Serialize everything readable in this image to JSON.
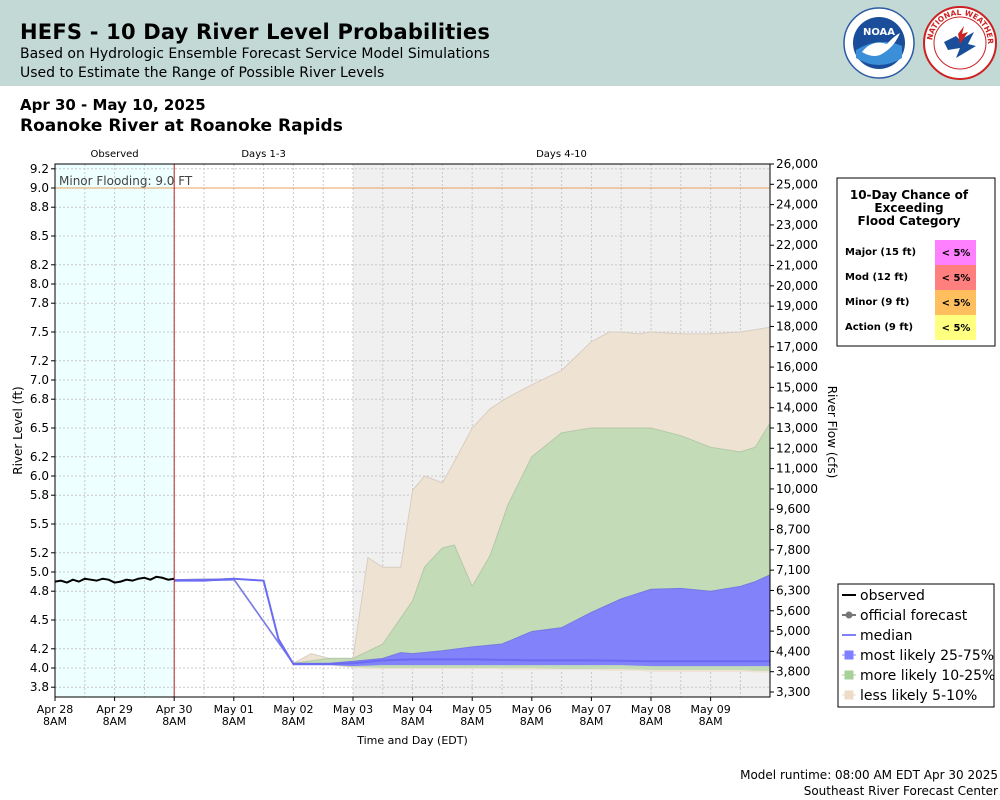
{
  "header": {
    "title": "HEFS - 10 Day River Level Probabilities",
    "subtitle1": "Based on Hydrologic Ensemble Forecast Service Model Simulations",
    "subtitle2": "Used to Estimate the Range of Possible River Levels",
    "noaa_logo_text": "NOAA",
    "nws_logo_text": "NATIONAL WEATHER SERVICE"
  },
  "date_range": "Apr 30 - May 10, 2025",
  "location": "Roanoke River at Roanoke Rapids",
  "footer": {
    "runtime": "Model runtime: 08:00 AM EDT Apr 30 2025",
    "center": "Southeast River Forecast Center"
  },
  "chance_table": {
    "title_lines": [
      "10-Day Chance of",
      "Exceeding",
      "Flood Category"
    ],
    "rows": [
      {
        "label": "Major (15 ft)",
        "value": "< 5%",
        "color": "#ff80ff"
      },
      {
        "label": "Mod (12 ft)",
        "value": "< 5%",
        "color": "#ff7f7f"
      },
      {
        "label": "Minor (9 ft)",
        "value": "< 5%",
        "color": "#ffbf5f"
      },
      {
        "label": "Action (9 ft)",
        "value": "< 5%",
        "color": "#ffff80"
      }
    ]
  },
  "chart_data": {
    "type": "area",
    "xlabel": "Time and Day (EDT)",
    "ylabel": "River Level (ft)",
    "y2label": "River Flow (cfs)",
    "ylim": [
      3.75,
      9.2
    ],
    "y_ticks": [
      "3.8",
      "4.0",
      "4.2",
      "4.5",
      "4.8",
      "5.0",
      "5.2",
      "5.5",
      "5.8",
      "6.0",
      "6.2",
      "6.5",
      "6.8",
      "7.0",
      "7.2",
      "7.5",
      "7.8",
      "8.0",
      "8.2",
      "8.5",
      "8.8",
      "9.0",
      "9.2"
    ],
    "y2_ticks": [
      "3,300",
      "3,800",
      "4,400",
      "5,000",
      "5,600",
      "6,300",
      "7,100",
      "7,800",
      "8,700",
      "9,600",
      "10,000",
      "11,000",
      "12,000",
      "13,000",
      "14,000",
      "15,000",
      "16,000",
      "17,000",
      "18,000",
      "19,000",
      "20,000",
      "21,000",
      "22,000",
      "23,000",
      "24,000",
      "25,000",
      "26,000"
    ],
    "x_ticks": [
      {
        "day": 0,
        "label": "Apr 28",
        "sub": "8AM"
      },
      {
        "day": 1,
        "label": "Apr 29",
        "sub": "8AM"
      },
      {
        "day": 2,
        "label": "Apr 30",
        "sub": "8AM"
      },
      {
        "day": 3,
        "label": "May 01",
        "sub": "8AM"
      },
      {
        "day": 4,
        "label": "May 02",
        "sub": "8AM"
      },
      {
        "day": 5,
        "label": "May 03",
        "sub": "8AM"
      },
      {
        "day": 6,
        "label": "May 04",
        "sub": "8AM"
      },
      {
        "day": 7,
        "label": "May 05",
        "sub": "8AM"
      },
      {
        "day": 8,
        "label": "May 06",
        "sub": "8AM"
      },
      {
        "day": 9,
        "label": "May 07",
        "sub": "8AM"
      },
      {
        "day": 10,
        "label": "May 08",
        "sub": "8AM"
      },
      {
        "day": 11,
        "label": "May 09",
        "sub": "8AM"
      }
    ],
    "regions": [
      {
        "label": "Observed",
        "start": 0,
        "end": 2,
        "color": "#eeffff"
      },
      {
        "label": "Days 1-3",
        "start": 2,
        "end": 5,
        "color": "#ffffff"
      },
      {
        "label": "Days 4-10",
        "start": 5,
        "end": 12.1,
        "color": "#f0f0f0"
      }
    ],
    "flood_line": {
      "label": "Minor Flooding: 9.0 FT",
      "value": 9.0,
      "color": "#e8a060"
    },
    "now_line": {
      "day": 2,
      "color": "#bb2222"
    },
    "legend": {
      "placement": "bottom-right",
      "entries": [
        {
          "label": "observed",
          "color": "#000000",
          "kind": "line"
        },
        {
          "label": "official forecast",
          "color": "#777777",
          "kind": "line-dot"
        },
        {
          "label": "median",
          "color": "#7f7fff",
          "kind": "line"
        },
        {
          "label": "most likely 25-75%",
          "color": "#7f7fff",
          "kind": "box"
        },
        {
          "label": "more likely 10-25%",
          "color": "#a8d09a",
          "kind": "box"
        },
        {
          "label": "less likely 5-10%",
          "color": "#ecdcc8",
          "kind": "box"
        }
      ]
    },
    "series": [
      {
        "name": "less likely 5-10%",
        "color": "#eee2d3",
        "x": [
          2.0,
          3.0,
          4.0,
          4.3,
          4.6,
          5.0,
          5.25,
          5.5,
          5.8,
          6.0,
          6.2,
          6.5,
          6.7,
          7.0,
          7.3,
          7.6,
          8.0,
          8.5,
          9.0,
          9.3,
          9.5,
          9.8,
          10.0,
          10.5,
          11.0,
          11.5,
          12.0,
          12.1
        ],
        "upper": [
          4.92,
          4.93,
          4.05,
          4.15,
          4.1,
          4.1,
          5.15,
          5.05,
          5.05,
          5.85,
          6.0,
          5.93,
          6.15,
          6.5,
          6.7,
          6.82,
          6.95,
          7.1,
          7.4,
          7.5,
          7.5,
          7.48,
          7.5,
          7.48,
          7.48,
          7.5,
          7.55,
          7.55
        ],
        "lower": [
          4.9,
          4.91,
          4.03,
          4.03,
          4.03,
          4.0,
          3.99,
          3.99,
          3.99,
          3.99,
          3.99,
          3.99,
          3.99,
          3.99,
          3.99,
          3.98,
          3.98,
          3.98,
          3.98,
          3.97,
          3.97,
          3.97,
          3.96,
          3.96,
          3.96,
          3.96,
          3.95,
          3.95
        ]
      },
      {
        "name": "more likely 10-25%",
        "color": "#c3dcb7",
        "x": [
          2.0,
          3.0,
          4.0,
          4.6,
          5.0,
          5.5,
          6.0,
          6.2,
          6.5,
          6.7,
          7.0,
          7.3,
          7.6,
          8.0,
          8.5,
          9.0,
          9.5,
          10.0,
          10.5,
          11.0,
          11.5,
          11.75,
          12.0,
          12.1
        ],
        "upper": [
          4.92,
          4.93,
          4.05,
          4.1,
          4.1,
          4.25,
          4.7,
          5.05,
          5.25,
          5.28,
          4.85,
          5.17,
          5.7,
          6.2,
          6.45,
          6.5,
          6.5,
          6.5,
          6.42,
          6.3,
          6.25,
          6.3,
          6.55,
          6.6
        ],
        "lower": [
          4.9,
          4.91,
          4.03,
          4.03,
          4.01,
          4.0,
          4.0,
          4.0,
          4.0,
          4.0,
          4.0,
          4.0,
          4.0,
          4.0,
          3.99,
          3.99,
          3.99,
          3.98,
          3.98,
          3.98,
          3.98,
          3.97,
          3.97,
          3.97
        ]
      },
      {
        "name": "most likely 25-75%",
        "color": "#8282fa",
        "x": [
          2.0,
          3.0,
          4.0,
          4.6,
          5.0,
          5.5,
          5.8,
          6.0,
          6.5,
          7.0,
          7.5,
          8.0,
          8.5,
          9.0,
          9.5,
          10.0,
          10.5,
          11.0,
          11.5,
          11.75,
          12.0,
          12.1
        ],
        "upper": [
          4.92,
          4.93,
          4.05,
          4.05,
          4.07,
          4.1,
          4.16,
          4.15,
          4.18,
          4.22,
          4.25,
          4.38,
          4.42,
          4.58,
          4.72,
          4.82,
          4.83,
          4.8,
          4.85,
          4.9,
          4.97,
          4.98
        ],
        "lower": [
          4.9,
          4.91,
          4.03,
          4.03,
          4.02,
          4.03,
          4.03,
          4.03,
          4.03,
          4.03,
          4.03,
          4.03,
          4.03,
          4.03,
          4.03,
          4.02,
          4.02,
          4.02,
          4.02,
          4.02,
          4.02,
          4.02
        ]
      },
      {
        "name": "median",
        "color": "#6a6af5",
        "x": [
          2.0,
          2.5,
          3.0,
          3.5,
          3.75,
          4.0,
          4.6,
          5.0,
          5.5,
          6.0,
          7.0,
          8.0,
          9.0,
          10.0,
          11.0,
          12.1
        ],
        "y": [
          4.91,
          4.91,
          4.93,
          4.91,
          4.3,
          4.04,
          4.04,
          4.05,
          4.08,
          4.09,
          4.09,
          4.08,
          4.08,
          4.07,
          4.07,
          4.07
        ]
      },
      {
        "name": "observed",
        "color": "#000000",
        "x": [
          0.0,
          0.1,
          0.2,
          0.3,
          0.4,
          0.5,
          0.6,
          0.7,
          0.8,
          0.9,
          1.0,
          1.1,
          1.2,
          1.3,
          1.4,
          1.5,
          1.6,
          1.7,
          1.8,
          1.9,
          2.0
        ],
        "y": [
          4.9,
          4.91,
          4.89,
          4.92,
          4.9,
          4.93,
          4.92,
          4.91,
          4.93,
          4.92,
          4.89,
          4.9,
          4.92,
          4.91,
          4.93,
          4.94,
          4.92,
          4.95,
          4.94,
          4.92,
          4.93
        ]
      }
    ]
  }
}
